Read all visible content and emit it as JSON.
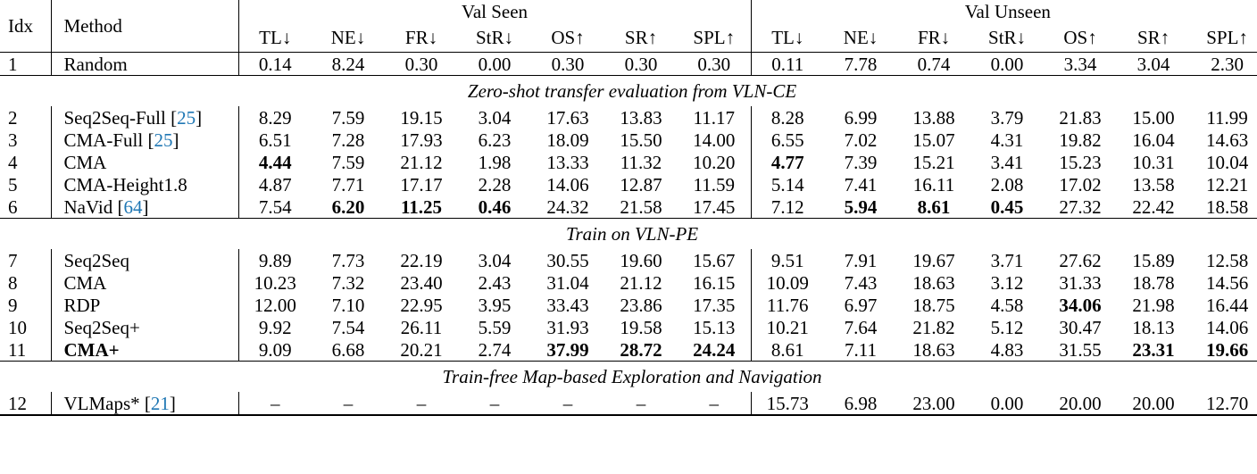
{
  "header": {
    "idx_label": "Idx",
    "method_label": "Method",
    "groups": [
      "Val Seen",
      "Val Unseen"
    ],
    "metrics": [
      "TL↓",
      "NE↓",
      "FR↓",
      "StR↓",
      "OS↑",
      "SR↑",
      "SPL↑"
    ]
  },
  "sections": [
    {
      "title": "",
      "rows": [
        {
          "idx": "1",
          "method": "Random",
          "cite": "",
          "bold_method": false,
          "values": [
            "0.14",
            "8.24",
            "0.30",
            "0.00",
            "0.30",
            "0.30",
            "0.30",
            "0.11",
            "7.78",
            "0.74",
            "0.00",
            "3.34",
            "3.04",
            "2.30"
          ],
          "bold": []
        }
      ]
    },
    {
      "title": "Zero-shot transfer evaluation from VLN-CE",
      "rows": [
        {
          "idx": "2",
          "method": "Seq2Seq-Full ",
          "cite": "25",
          "bold_method": false,
          "values": [
            "8.29",
            "7.59",
            "19.15",
            "3.04",
            "17.63",
            "13.83",
            "11.17",
            "8.28",
            "6.99",
            "13.88",
            "3.79",
            "21.83",
            "15.00",
            "11.99"
          ],
          "bold": []
        },
        {
          "idx": "3",
          "method": "CMA-Full ",
          "cite": "25",
          "bold_method": false,
          "values": [
            "6.51",
            "7.28",
            "17.93",
            "6.23",
            "18.09",
            "15.50",
            "14.00",
            "6.55",
            "7.02",
            "15.07",
            "4.31",
            "19.82",
            "16.04",
            "14.63"
          ],
          "bold": []
        },
        {
          "idx": "4",
          "method": "CMA",
          "cite": "",
          "bold_method": false,
          "values": [
            "4.44",
            "7.59",
            "21.12",
            "1.98",
            "13.33",
            "11.32",
            "10.20",
            "4.77",
            "7.39",
            "15.21",
            "3.41",
            "15.23",
            "10.31",
            "10.04"
          ],
          "bold": [
            0,
            7
          ]
        },
        {
          "idx": "5",
          "method": "CMA-Height1.8",
          "cite": "",
          "bold_method": false,
          "values": [
            "4.87",
            "7.71",
            "17.17",
            "2.28",
            "14.06",
            "12.87",
            "11.59",
            "5.14",
            "7.41",
            "16.11",
            "2.08",
            "17.02",
            "13.58",
            "12.21"
          ],
          "bold": []
        },
        {
          "idx": "6",
          "method": "NaVid ",
          "cite": "64",
          "bold_method": false,
          "values": [
            "7.54",
            "6.20",
            "11.25",
            "0.46",
            "24.32",
            "21.58",
            "17.45",
            "7.12",
            "5.94",
            "8.61",
            "0.45",
            "27.32",
            "22.42",
            "18.58"
          ],
          "bold": [
            1,
            2,
            3,
            8,
            9,
            10
          ]
        }
      ]
    },
    {
      "title": "Train on VLN-PE",
      "rows": [
        {
          "idx": "7",
          "method": "Seq2Seq",
          "cite": "",
          "bold_method": false,
          "values": [
            "9.89",
            "7.73",
            "22.19",
            "3.04",
            "30.55",
            "19.60",
            "15.67",
            "9.51",
            "7.91",
            "19.67",
            "3.71",
            "27.62",
            "15.89",
            "12.58"
          ],
          "bold": []
        },
        {
          "idx": "8",
          "method": "CMA",
          "cite": "",
          "bold_method": false,
          "values": [
            "10.23",
            "7.32",
            "23.40",
            "2.43",
            "31.04",
            "21.12",
            "16.15",
            "10.09",
            "7.43",
            "18.63",
            "3.12",
            "31.33",
            "18.78",
            "14.56"
          ],
          "bold": []
        },
        {
          "idx": "9",
          "method": "RDP",
          "cite": "",
          "bold_method": false,
          "values": [
            "12.00",
            "7.10",
            "22.95",
            "3.95",
            "33.43",
            "23.86",
            "17.35",
            "11.76",
            "6.97",
            "18.75",
            "4.58",
            "34.06",
            "21.98",
            "16.44"
          ],
          "bold": [
            11
          ]
        },
        {
          "idx": "10",
          "method": "Seq2Seq+",
          "cite": "",
          "bold_method": false,
          "values": [
            "9.92",
            "7.54",
            "26.11",
            "5.59",
            "31.93",
            "19.58",
            "15.13",
            "10.21",
            "7.64",
            "21.82",
            "5.12",
            "30.47",
            "18.13",
            "14.06"
          ],
          "bold": []
        },
        {
          "idx": "11",
          "method": "CMA+",
          "cite": "",
          "bold_method": true,
          "values": [
            "9.09",
            "6.68",
            "20.21",
            "2.74",
            "37.99",
            "28.72",
            "24.24",
            "8.61",
            "7.11",
            "18.63",
            "4.83",
            "31.55",
            "23.31",
            "19.66"
          ],
          "bold": [
            4,
            5,
            6,
            12,
            13
          ]
        }
      ]
    },
    {
      "title": "Train-free Map-based Exploration and Navigation",
      "rows": [
        {
          "idx": "12",
          "method": "VLMaps* ",
          "cite": "21",
          "bold_method": false,
          "values": [
            "–",
            "–",
            "–",
            "–",
            "–",
            "–",
            "–",
            "15.73",
            "6.98",
            "23.00",
            "0.00",
            "20.00",
            "20.00",
            "12.70"
          ],
          "bold": []
        }
      ]
    }
  ]
}
